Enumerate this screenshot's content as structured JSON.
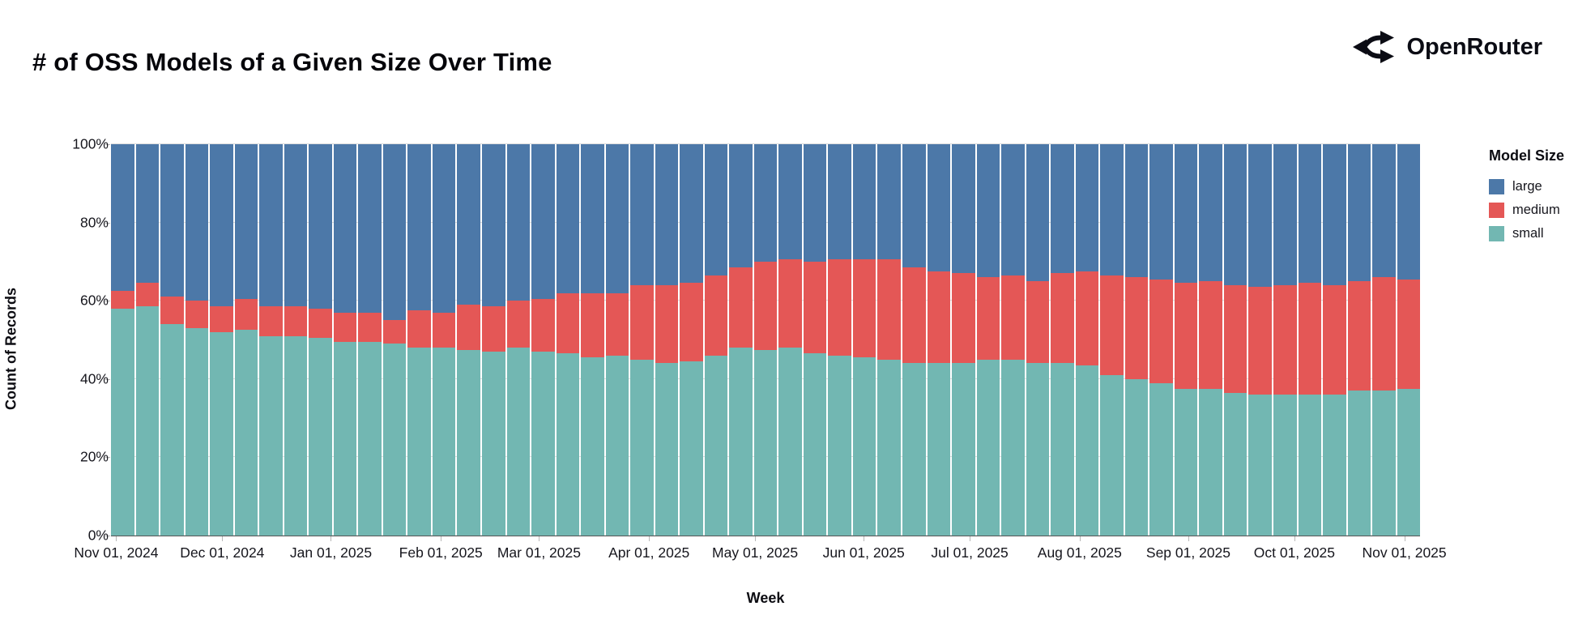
{
  "header": {
    "title": "# of OSS Models of a Given Size Over Time",
    "brand": "OpenRouter"
  },
  "chart_data": {
    "type": "bar",
    "stacked": true,
    "normalized_percent": true,
    "title": "# of OSS Models of a Given Size Over Time",
    "xlabel": "Week",
    "ylabel": "Count of Records",
    "ylim": [
      0,
      100
    ],
    "grid": true,
    "legend_position": "right",
    "legend": {
      "title": "Model Size",
      "entries": [
        {
          "label": "large",
          "color": "#4c78a8"
        },
        {
          "label": "medium",
          "color": "#e45756"
        },
        {
          "label": "small",
          "color": "#72b7b2"
        }
      ]
    },
    "y_ticks": [
      {
        "label": "0%",
        "value": 0
      },
      {
        "label": "20%",
        "value": 20
      },
      {
        "label": "40%",
        "value": 40
      },
      {
        "label": "60%",
        "value": 60
      },
      {
        "label": "80%",
        "value": 80
      },
      {
        "label": "100%",
        "value": 100
      }
    ],
    "x_ticks": [
      {
        "label": "Nov 01, 2024",
        "pos_pct": 0.4
      },
      {
        "label": "Dec 01, 2024",
        "pos_pct": 8.5
      },
      {
        "label": "Jan 01, 2025",
        "pos_pct": 16.8
      },
      {
        "label": "Feb 01, 2025",
        "pos_pct": 25.2
      },
      {
        "label": "Mar 01, 2025",
        "pos_pct": 32.7
      },
      {
        "label": "Apr 01, 2025",
        "pos_pct": 41.1
      },
      {
        "label": "May 01, 2025",
        "pos_pct": 49.2
      },
      {
        "label": "Jun 01, 2025",
        "pos_pct": 57.5
      },
      {
        "label": "Jul 01, 2025",
        "pos_pct": 65.6
      },
      {
        "label": "Aug 01, 2025",
        "pos_pct": 74.0
      },
      {
        "label": "Sep 01, 2025",
        "pos_pct": 82.3
      },
      {
        "label": "Oct 01, 2025",
        "pos_pct": 90.4
      },
      {
        "label": "Nov 01, 2025",
        "pos_pct": 98.8
      }
    ],
    "weeks": 53,
    "x_unit": "week",
    "series": [
      {
        "name": "small",
        "color": "#72b7b2",
        "values": [
          58,
          58.5,
          54,
          53,
          52,
          52.5,
          51,
          51,
          50.5,
          49.5,
          49.5,
          49,
          48,
          48,
          47.5,
          47,
          48,
          47,
          46.5,
          45.5,
          46,
          45,
          44,
          44.5,
          46,
          48,
          47.5,
          48,
          46.5,
          46,
          45.5,
          45,
          44,
          44,
          44,
          45,
          45,
          44,
          44,
          43.5,
          41,
          40,
          39,
          37.5,
          37.5,
          36.5,
          36,
          36,
          36,
          36,
          37,
          37,
          37.5
        ]
      },
      {
        "name": "medium",
        "color": "#e45756",
        "values": [
          4.5,
          6,
          7,
          7,
          6.5,
          8,
          7.5,
          7.5,
          7.5,
          7.5,
          7.5,
          6,
          9.5,
          9,
          11.5,
          11.5,
          12,
          13.5,
          15.5,
          16.5,
          16,
          19,
          20,
          20,
          20.5,
          20.5,
          22.5,
          22.5,
          23.5,
          24.5,
          25,
          25.5,
          24.5,
          23.5,
          23,
          21,
          21.5,
          21,
          23,
          24,
          25.5,
          26,
          26.5,
          27,
          27.5,
          27.5,
          27.5,
          28,
          28.5,
          28,
          28,
          29,
          28
        ]
      },
      {
        "name": "large",
        "color": "#4c78a8",
        "values": [
          37.5,
          35.5,
          39,
          40,
          41.5,
          39.5,
          41.5,
          41.5,
          42,
          43,
          43,
          45,
          42.5,
          43,
          41,
          41.5,
          40,
          39.5,
          38,
          38,
          38,
          36,
          36,
          35.5,
          33.5,
          31.5,
          30,
          29.5,
          30,
          29.5,
          29.5,
          29.5,
          31.5,
          32.5,
          33,
          34,
          33.5,
          35,
          33,
          32.5,
          33.5,
          34,
          34.5,
          35.5,
          35,
          36,
          36.5,
          36,
          35.5,
          36,
          35,
          34,
          34.5
        ]
      }
    ]
  }
}
